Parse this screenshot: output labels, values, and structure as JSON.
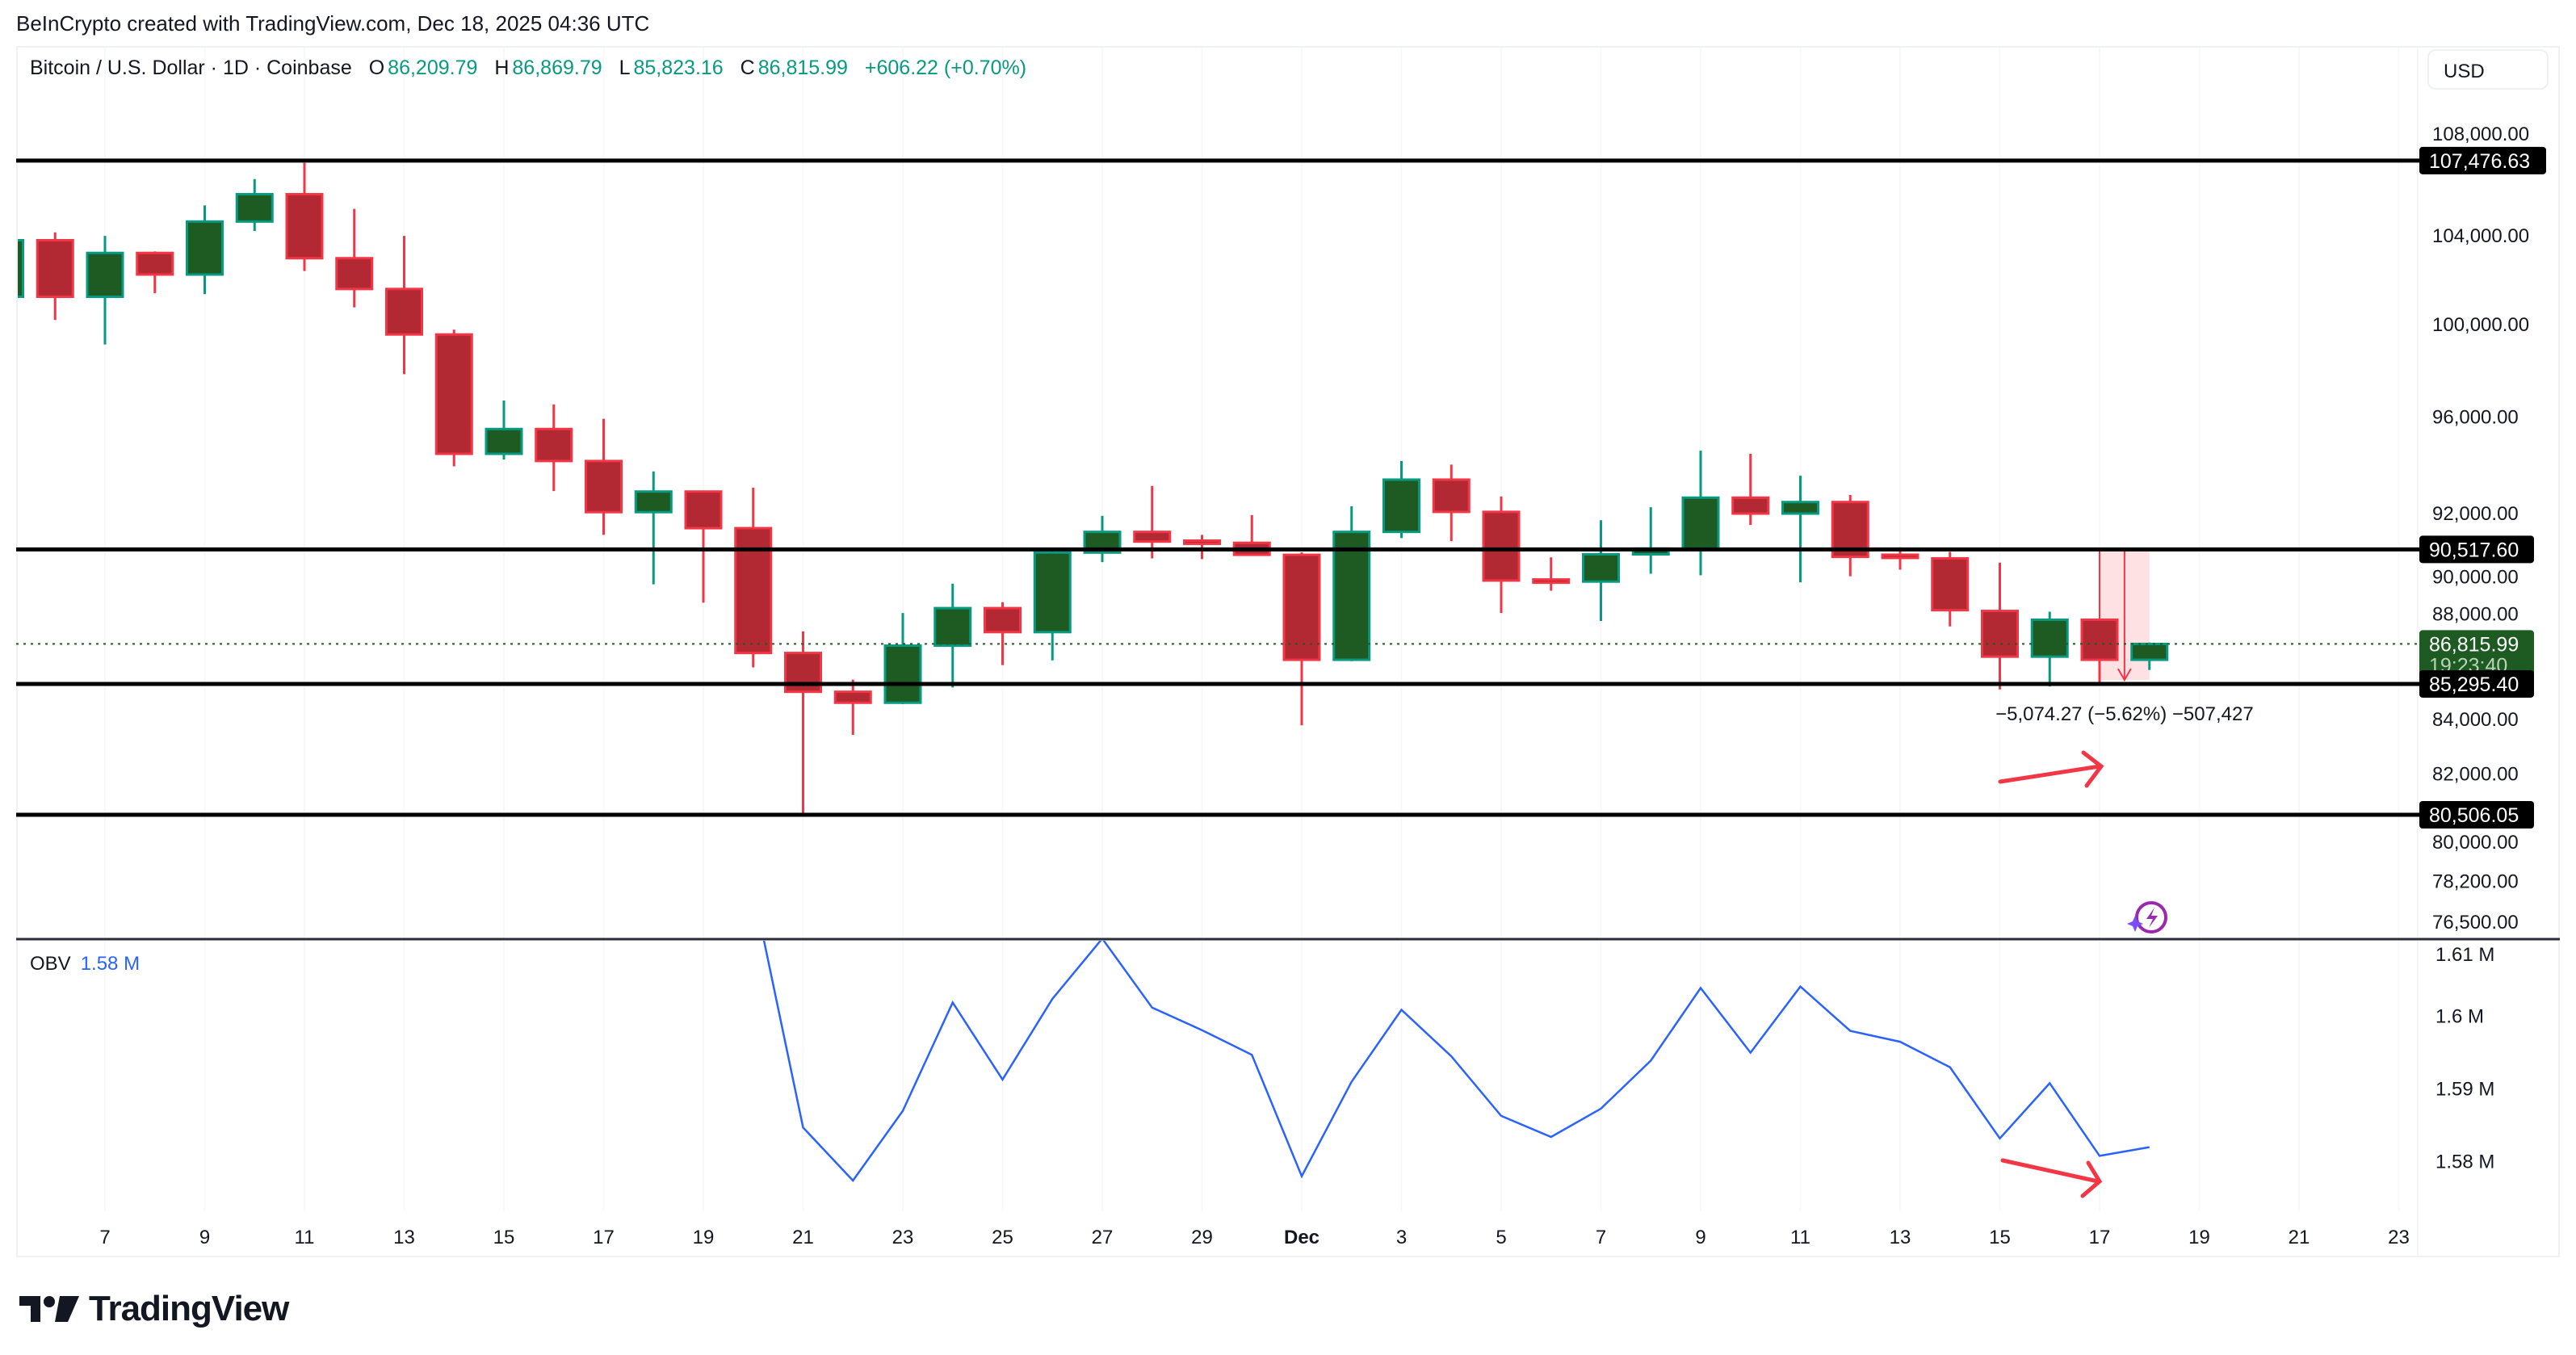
{
  "credit": "BeInCrypto created with TradingView.com, Dec 18, 2025 04:36 UTC",
  "legend": {
    "symbol": "Bitcoin / U.S. Dollar · 1D · Coinbase",
    "o_label": "O",
    "o": "86,209.79",
    "h_label": "H",
    "h": "86,869.79",
    "l_label": "L",
    "l": "85,823.16",
    "c_label": "C",
    "c": "86,815.99",
    "change": "+606.22 (+0.70%)"
  },
  "currency_button": "USD",
  "obv_legend": {
    "name": "OBV",
    "value": "1.58 M"
  },
  "logo_text": "TradingView",
  "colors": {
    "up_body": "#1e5b22",
    "up_border": "#089981",
    "down_body": "#b22833",
    "down_border": "#f23645",
    "obv_line": "#2962ff",
    "level_line": "#000000",
    "annotation": "#f23645"
  },
  "chart_data": [
    {
      "type": "candlestick",
      "scale": "log",
      "ylim": [
        76000,
        109500
      ],
      "y_ticks": [
        "108,000.00",
        "104,000.00",
        "100,000.00",
        "96,000.00",
        "92,000.00",
        "90,000.00",
        "88,000.00",
        "84,000.00",
        "82,000.00",
        "80,000.00",
        "78,200.00",
        "76,500.00"
      ],
      "y_tick_values": [
        108000,
        104000,
        100000,
        96000,
        92000,
        90000,
        88000,
        84000,
        82000,
        80000,
        78200,
        76500
      ],
      "x_ticks": [
        {
          "date": "2025-11-07",
          "label": "7"
        },
        {
          "date": "2025-11-09",
          "label": "9"
        },
        {
          "date": "2025-11-11",
          "label": "11"
        },
        {
          "date": "2025-11-13",
          "label": "13"
        },
        {
          "date": "2025-11-15",
          "label": "15"
        },
        {
          "date": "2025-11-17",
          "label": "17"
        },
        {
          "date": "2025-11-19",
          "label": "19"
        },
        {
          "date": "2025-11-21",
          "label": "21"
        },
        {
          "date": "2025-11-23",
          "label": "23"
        },
        {
          "date": "2025-11-25",
          "label": "25"
        },
        {
          "date": "2025-11-27",
          "label": "27"
        },
        {
          "date": "2025-11-29",
          "label": "29"
        },
        {
          "date": "2025-12-01",
          "label": "Dec"
        },
        {
          "date": "2025-12-03",
          "label": "3"
        },
        {
          "date": "2025-12-05",
          "label": "5"
        },
        {
          "date": "2025-12-07",
          "label": "7"
        },
        {
          "date": "2025-12-09",
          "label": "9"
        },
        {
          "date": "2025-12-11",
          "label": "11"
        },
        {
          "date": "2025-12-13",
          "label": "13"
        },
        {
          "date": "2025-12-15",
          "label": "15"
        },
        {
          "date": "2025-12-17",
          "label": "17"
        },
        {
          "date": "2025-12-19",
          "label": "19"
        },
        {
          "date": "2025-12-21",
          "label": "21"
        },
        {
          "date": "2025-12-23",
          "label": "23"
        }
      ],
      "columns": [
        "date",
        "open",
        "high",
        "low",
        "close"
      ],
      "candles": [
        [
          "2025-11-05",
          101200,
          104000,
          101000,
          103760
        ],
        [
          "2025-11-06",
          103760,
          104120,
          100170,
          101200
        ],
        [
          "2025-11-07",
          101200,
          103960,
          99090,
          103180
        ],
        [
          "2025-11-08",
          103180,
          103250,
          101360,
          102200
        ],
        [
          "2025-11-09",
          102200,
          105370,
          101320,
          104620
        ],
        [
          "2025-11-10",
          104620,
          106600,
          104180,
          105890
        ],
        [
          "2025-11-11",
          105890,
          107370,
          102360,
          102940
        ],
        [
          "2025-11-12",
          102940,
          105210,
          100730,
          101550
        ],
        [
          "2025-11-13",
          101550,
          103960,
          97800,
          99530
        ],
        [
          "2025-11-14",
          99530,
          99740,
          93900,
          94420
        ],
        [
          "2025-11-15",
          94420,
          96670,
          94180,
          95460
        ],
        [
          "2025-11-16",
          95460,
          96500,
          92880,
          94120
        ],
        [
          "2025-11-17",
          94120,
          95890,
          91100,
          92020
        ],
        [
          "2025-11-18",
          92020,
          93690,
          89130,
          92860
        ],
        [
          "2025-11-19",
          92860,
          92870,
          88410,
          91370
        ],
        [
          "2025-11-20",
          91370,
          93020,
          85920,
          86470
        ],
        [
          "2025-11-21",
          86470,
          87300,
          80500,
          85000
        ],
        [
          "2025-11-22",
          85000,
          85460,
          83400,
          84590
        ],
        [
          "2025-11-23",
          84590,
          88010,
          84540,
          86750
        ],
        [
          "2025-11-24",
          86750,
          89160,
          85160,
          88200
        ],
        [
          "2025-11-25",
          88200,
          88430,
          86010,
          87270
        ],
        [
          "2025-11-26",
          87270,
          90570,
          86190,
          90390
        ],
        [
          "2025-11-27",
          90390,
          91870,
          90010,
          91220
        ],
        [
          "2025-11-28",
          91220,
          93090,
          90160,
          90830
        ],
        [
          "2025-11-29",
          90830,
          91100,
          90130,
          90780
        ],
        [
          "2025-11-30",
          90780,
          91900,
          90270,
          90300
        ],
        [
          "2025-12-01",
          90300,
          90400,
          83750,
          86210
        ],
        [
          "2025-12-02",
          86210,
          92260,
          86160,
          91220
        ],
        [
          "2025-12-03",
          91220,
          94120,
          90970,
          93350
        ],
        [
          "2025-12-04",
          93350,
          93970,
          90850,
          92030
        ],
        [
          "2025-12-05",
          92030,
          92660,
          88010,
          89280
        ],
        [
          "2025-12-06",
          89280,
          90200,
          88880,
          89240
        ],
        [
          "2025-12-07",
          89240,
          91690,
          87700,
          90320
        ],
        [
          "2025-12-08",
          90320,
          92220,
          89550,
          90550
        ],
        [
          "2025-12-09",
          90550,
          94550,
          89490,
          92610
        ],
        [
          "2025-12-10",
          92610,
          94420,
          91500,
          91960
        ],
        [
          "2025-12-11",
          91960,
          93510,
          89210,
          92430
        ],
        [
          "2025-12-12",
          92430,
          92720,
          89450,
          90220
        ],
        [
          "2025-12-13",
          90260,
          90600,
          89710,
          90220
        ],
        [
          "2025-12-14",
          90160,
          90420,
          87490,
          88120
        ],
        [
          "2025-12-15",
          88090,
          89990,
          85090,
          86330
        ],
        [
          "2025-12-16",
          86330,
          88060,
          85200,
          87750
        ],
        [
          "2025-12-17",
          87750,
          87750,
          85350,
          86210
        ],
        [
          "2025-12-18",
          86209.79,
          86869.79,
          85823.16,
          86815.99
        ]
      ],
      "levels": [
        {
          "value": 107476.63,
          "label": "107,476.63"
        },
        {
          "value": 90517.6,
          "label": "90,517.60"
        },
        {
          "value": 85295.4,
          "label": "85,295.40"
        },
        {
          "value": 80506.05,
          "label": "80,506.05"
        }
      ],
      "last_price": {
        "value": 86815.99,
        "label": "86,815.99",
        "countdown": "19:23:40"
      },
      "measure": {
        "from": 90517.6,
        "to": 85443.33,
        "start_date": "2025-12-17",
        "end_date": "2025-12-18",
        "label": "−5,074.27 (−5.62%) −507,427"
      }
    },
    {
      "type": "line",
      "name": "OBV",
      "ylim": [
        1.5735,
        1.6115
      ],
      "y_ticks": [
        "1.61 M",
        "1.6 M",
        "1.59 M",
        "1.58 M"
      ],
      "y_tick_values": [
        1.61,
        1.6,
        1.59,
        1.58
      ],
      "unit": "M",
      "points": [
        [
          "2025-11-20",
          1.6174
        ],
        [
          "2025-11-21",
          1.5846
        ],
        [
          "2025-11-22",
          1.5773
        ],
        [
          "2025-11-23",
          1.5869
        ],
        [
          "2025-11-24",
          1.6018
        ],
        [
          "2025-11-25",
          1.5912
        ],
        [
          "2025-11-26",
          1.6023
        ],
        [
          "2025-11-27",
          1.6106
        ],
        [
          "2025-11-28",
          1.6011
        ],
        [
          "2025-11-29",
          1.598
        ],
        [
          "2025-11-30",
          1.5946
        ],
        [
          "2025-12-01",
          1.5779
        ],
        [
          "2025-12-02",
          1.5909
        ],
        [
          "2025-12-03",
          1.6008
        ],
        [
          "2025-12-04",
          1.5944
        ],
        [
          "2025-12-05",
          1.5862
        ],
        [
          "2025-12-06",
          1.5833
        ],
        [
          "2025-12-07",
          1.5872
        ],
        [
          "2025-12-08",
          1.5938
        ],
        [
          "2025-12-09",
          1.6038
        ],
        [
          "2025-12-10",
          1.5949
        ],
        [
          "2025-12-11",
          1.604
        ],
        [
          "2025-12-12",
          1.5979
        ],
        [
          "2025-12-13",
          1.5964
        ],
        [
          "2025-12-14",
          1.5929
        ],
        [
          "2025-12-15",
          1.5831
        ],
        [
          "2025-12-16",
          1.5907
        ],
        [
          "2025-12-17",
          1.5807
        ],
        [
          "2025-12-18",
          1.5819
        ]
      ]
    }
  ]
}
